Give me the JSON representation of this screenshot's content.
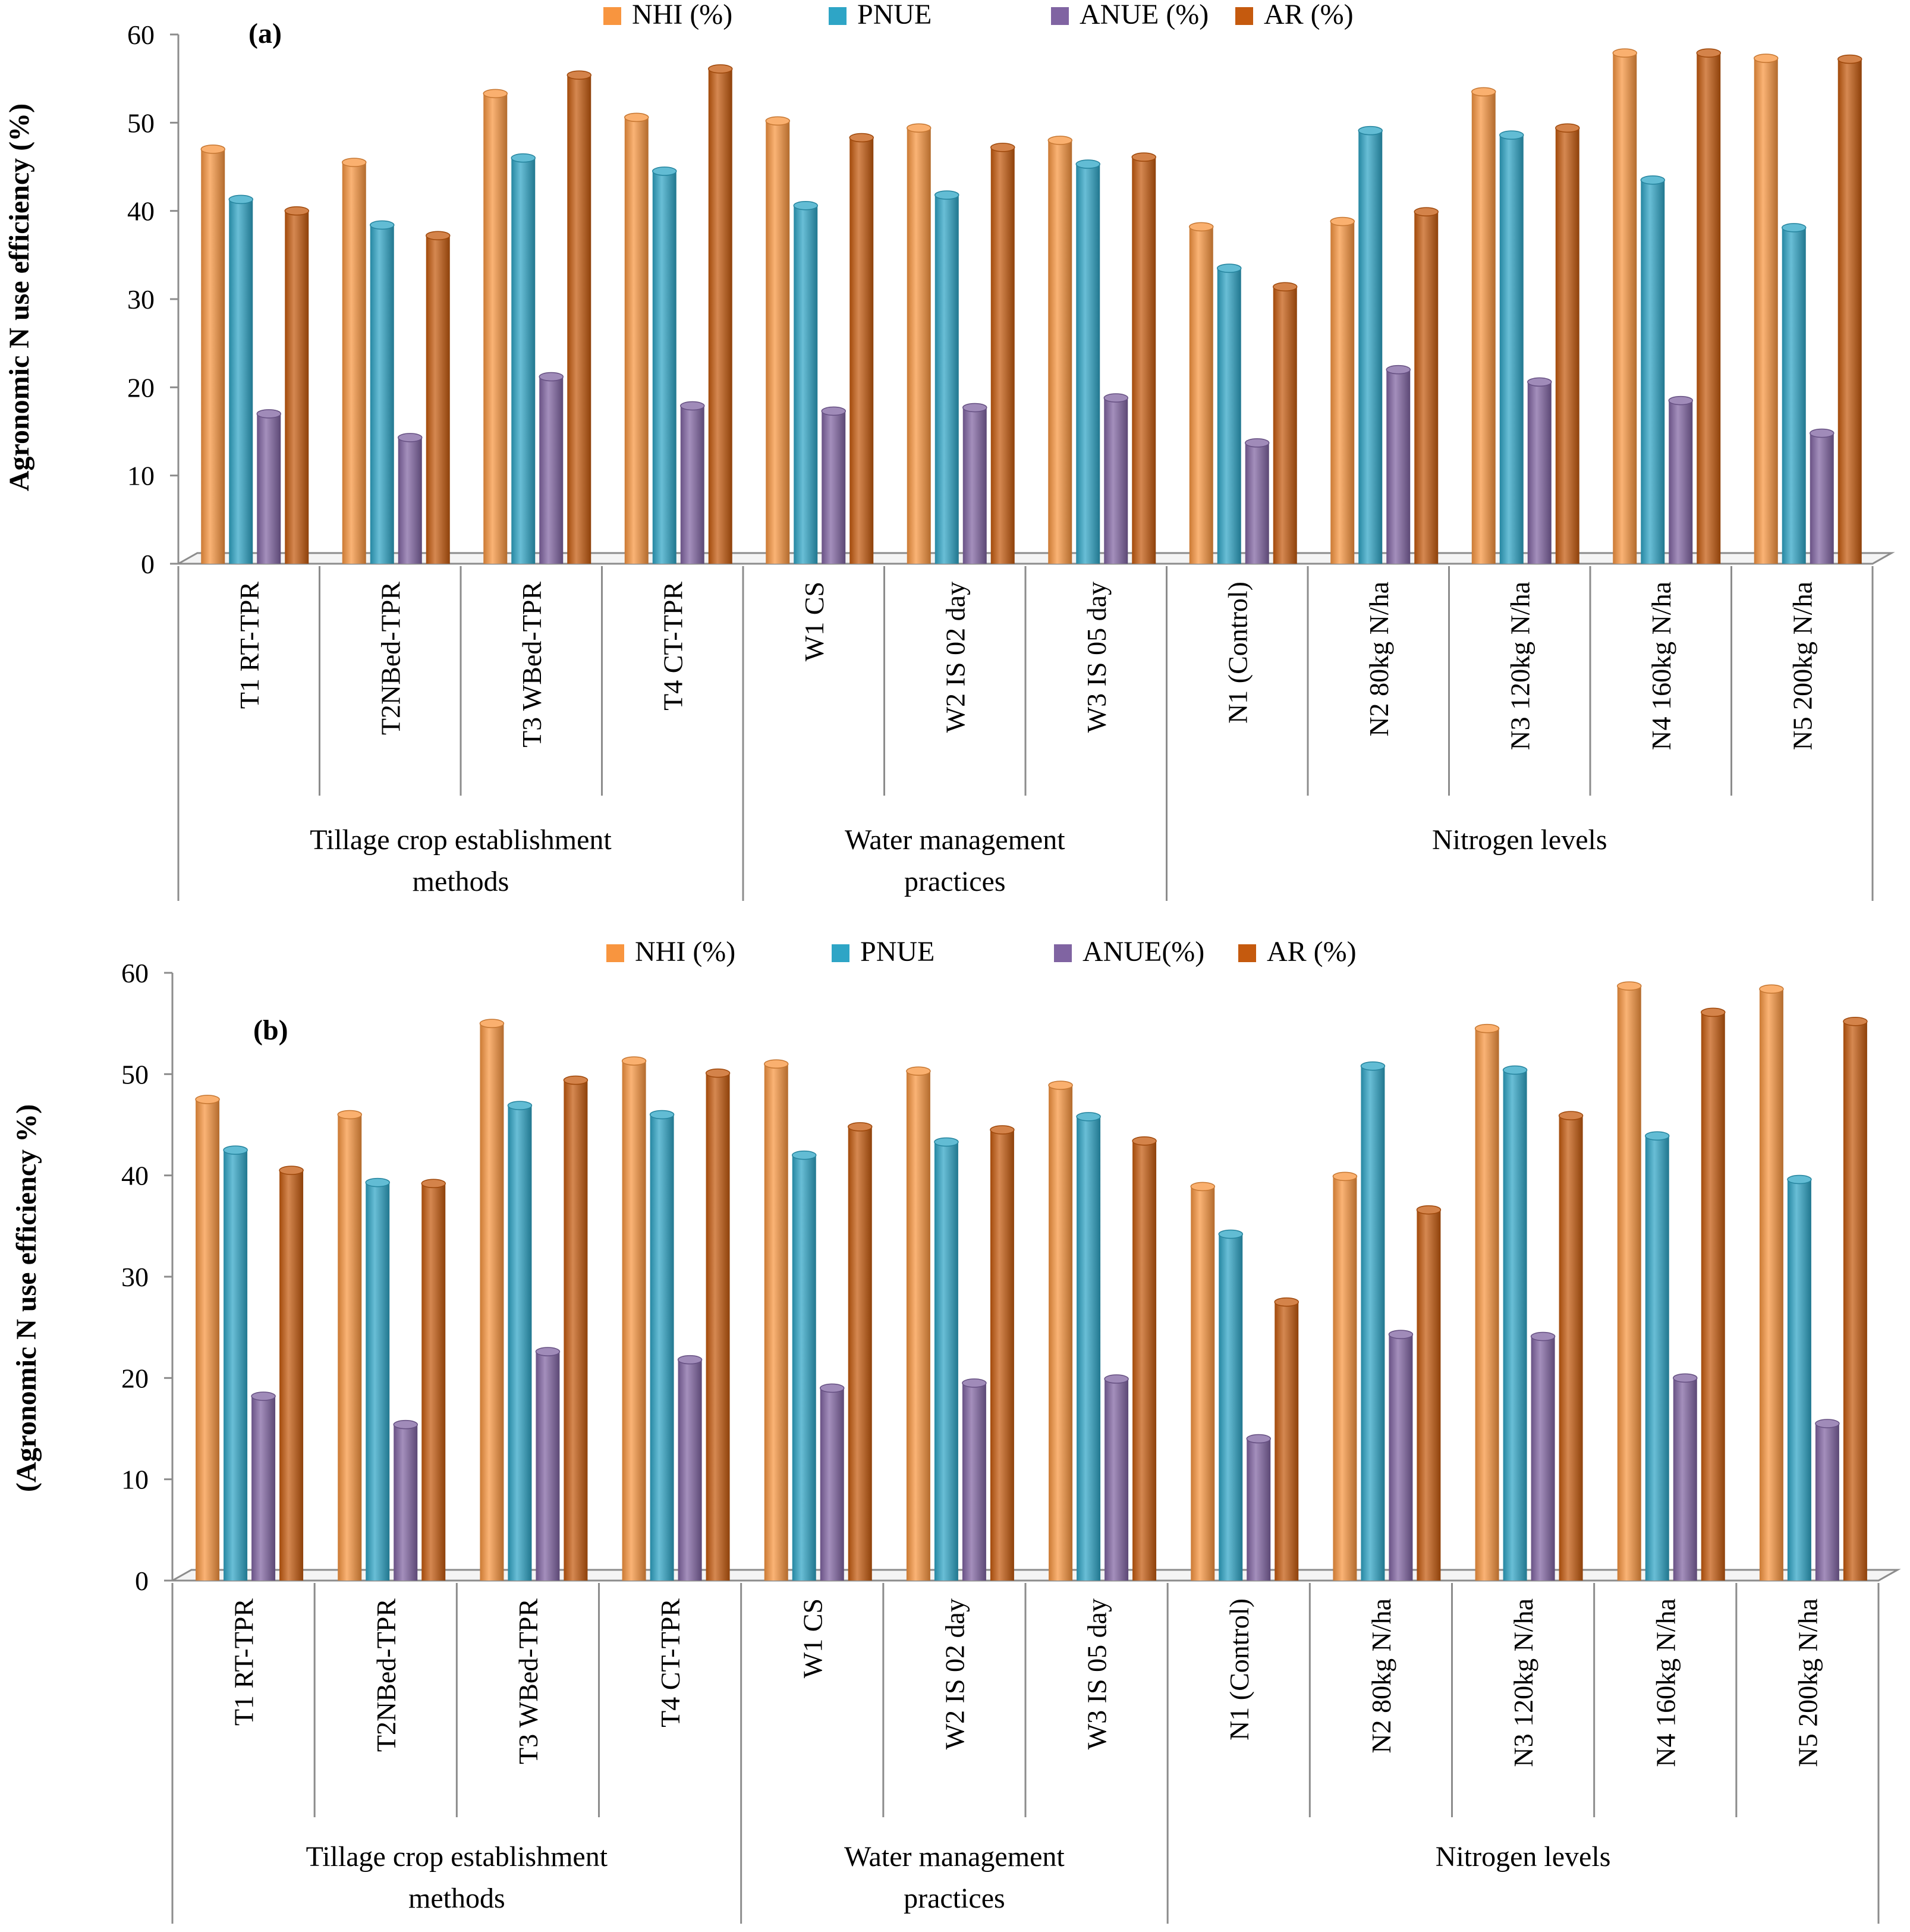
{
  "figure": {
    "categories": [
      "T1 RT-TPR",
      "T2NBed-TPR",
      "T3 WBed-TPR",
      "T4 CT-TPR",
      "W1 CS",
      "W2 IS 02 day",
      "W3 IS 05 day",
      "N1 (Control)",
      "N2 80kg N/ha",
      "N3 120kg N/ha",
      "N4 160kg N/ha",
      "N5 200kg N/ha"
    ],
    "groups": [
      {
        "label_line1": "Tillage crop establishment",
        "label_line2": "methods",
        "start": 0,
        "end": 3
      },
      {
        "label_line1": "Water management",
        "label_line2": "practices",
        "start": 4,
        "end": 6
      },
      {
        "label_line1": "Nitrogen levels",
        "label_line2": "",
        "start": 7,
        "end": 11
      }
    ],
    "colors": {
      "nhi": "#f8953f",
      "pnue": "#2ea5c6",
      "anue": "#8064a2",
      "ar": "#c55a0e"
    }
  },
  "chart_data": [
    {
      "type": "bar",
      "panel_label": "(a)",
      "ylabel": "Agronomic N use efficiency (%)",
      "ylim": [
        0,
        60
      ],
      "yticks": [
        0,
        10,
        20,
        30,
        40,
        50,
        60
      ],
      "legend_position": "top-center",
      "series": [
        {
          "name": "NHI (%)",
          "color_key": "nhi",
          "values": [
            47,
            45.5,
            53.3,
            50.6,
            50.2,
            49.4,
            48,
            38.2,
            38.8,
            53.5,
            57.9,
            57.3
          ]
        },
        {
          "name": "PNUE",
          "color_key": "pnue",
          "values": [
            41.3,
            38.4,
            46,
            44.5,
            40.6,
            41.8,
            45.3,
            33.5,
            49.1,
            48.6,
            43.5,
            38.1
          ]
        },
        {
          "name": "ANUE (%)",
          "color_key": "anue",
          "values": [
            17,
            14.3,
            21.2,
            17.9,
            17.3,
            17.7,
            18.8,
            13.7,
            22,
            20.6,
            18.5,
            14.8
          ]
        },
        {
          "name": "AR (%)",
          "color_key": "ar",
          "values": [
            40,
            37.2,
            55.4,
            56.1,
            48.3,
            47.2,
            46.1,
            31.4,
            39.9,
            49.4,
            57.9,
            57.2
          ]
        }
      ]
    },
    {
      "type": "bar",
      "panel_label": "(b)",
      "ylabel": "(Agronomic N use efficiency %)",
      "ylim": [
        0,
        60
      ],
      "yticks": [
        0,
        10,
        20,
        30,
        40,
        50,
        60
      ],
      "legend_position": "top-center",
      "series": [
        {
          "name": "NHI (%)",
          "color_key": "nhi",
          "values": [
            47.5,
            46,
            55,
            51.3,
            51,
            50.3,
            48.9,
            38.9,
            39.9,
            54.5,
            58.7,
            58.4
          ]
        },
        {
          "name": "PNUE",
          "color_key": "pnue",
          "values": [
            42.5,
            39.3,
            46.9,
            46,
            42,
            43.3,
            45.8,
            34.2,
            50.8,
            50.4,
            43.9,
            39.6
          ]
        },
        {
          "name": "ANUE(%)",
          "color_key": "anue",
          "values": [
            18.2,
            15.4,
            22.6,
            21.8,
            19,
            19.5,
            19.9,
            14,
            24.3,
            24.1,
            20,
            15.5
          ]
        },
        {
          "name": "AR (%)",
          "color_key": "ar",
          "values": [
            40.5,
            39.2,
            49.4,
            50.1,
            44.8,
            44.5,
            43.4,
            27.5,
            36.6,
            45.9,
            56.1,
            55.2
          ]
        }
      ]
    }
  ]
}
